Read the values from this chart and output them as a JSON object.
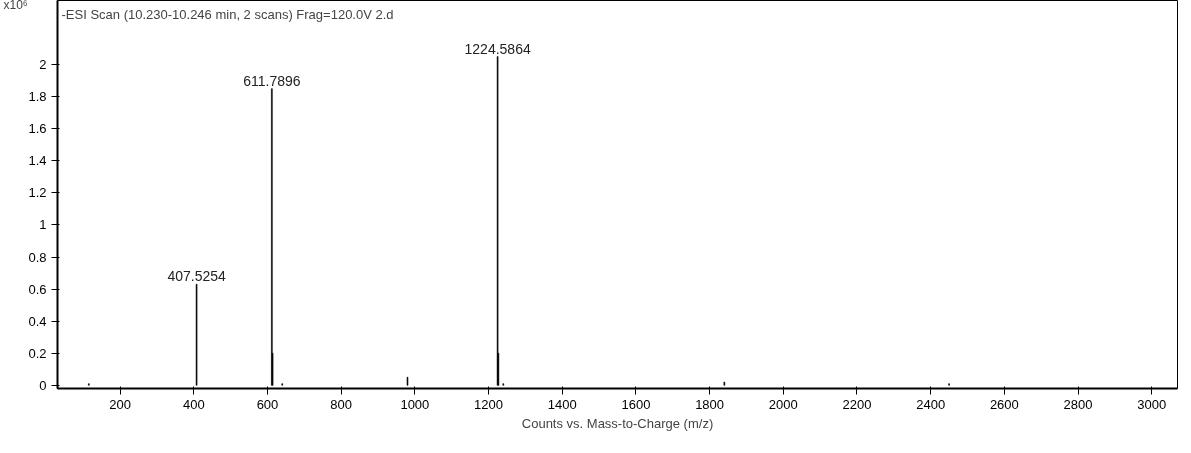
{
  "chart_data": {
    "type": "bar",
    "title": "-ESI Scan (10.230-10.246 min, 2 scans) Frag=120.0V 2.d",
    "xlabel": "Counts vs. Mass-to-Charge (m/z)",
    "ylabel": "x10⁶",
    "x": [
      115,
      407.5254,
      611.7896,
      613.8,
      640,
      980,
      1224.5864,
      1226.6,
      1240,
      1840,
      2450
    ],
    "values": [
      0.01,
      0.63,
      1.85,
      0.2,
      0.01,
      0.05,
      2.05,
      0.2,
      0.01,
      0.02,
      0.01
    ],
    "color": "#000000",
    "xlim": [
      30,
      3070
    ],
    "ylim": [
      -0.02,
      2.4
    ],
    "xticks": [
      200,
      400,
      600,
      800,
      1000,
      1200,
      1400,
      1600,
      1800,
      2000,
      2200,
      2400,
      2600,
      2800,
      3000
    ],
    "yticks": [
      0,
      0.2,
      0.4,
      0.6,
      0.8,
      1,
      1.2,
      1.4,
      1.6,
      1.8,
      2
    ],
    "annotations": [
      {
        "text": "407.5254",
        "x": 407.5254,
        "y": 0.63
      },
      {
        "text": "611.7896",
        "x": 611.7896,
        "y": 1.85
      },
      {
        "text": "1224.5864",
        "x": 1224.5864,
        "y": 2.05
      }
    ],
    "grid": false
  }
}
